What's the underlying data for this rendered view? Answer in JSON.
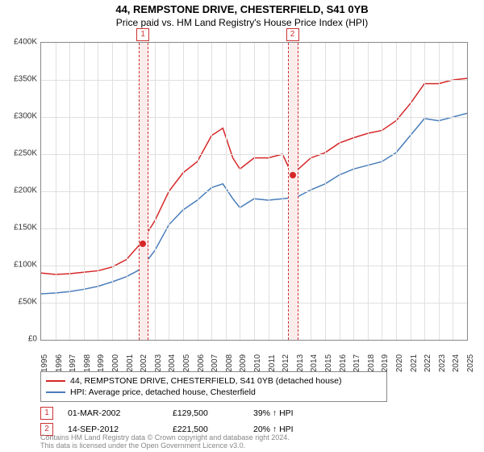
{
  "title": "44, REMPSTONE DRIVE, CHESTERFIELD, S41 0YB",
  "subtitle": "Price paid vs. HM Land Registry's House Price Index (HPI)",
  "chart": {
    "type": "line",
    "ylim": [
      0,
      400000
    ],
    "xlim": [
      1995,
      2025
    ],
    "y_ticks": [
      0,
      50000,
      100000,
      150000,
      200000,
      250000,
      300000,
      350000,
      400000
    ],
    "y_tick_labels": [
      "£0",
      "£50K",
      "£100K",
      "£150K",
      "£200K",
      "£250K",
      "£300K",
      "£350K",
      "£400K"
    ],
    "x_ticks": [
      1995,
      1996,
      1997,
      1998,
      1999,
      2000,
      2001,
      2002,
      2003,
      2004,
      2005,
      2006,
      2007,
      2008,
      2009,
      2010,
      2011,
      2012,
      2013,
      2014,
      2015,
      2016,
      2017,
      2018,
      2019,
      2020,
      2021,
      2022,
      2023,
      2024,
      2025
    ],
    "grid_color": "#e0e0e0",
    "background_color": "#ffffff",
    "line_width": 1.5,
    "series": [
      {
        "name": "property",
        "label": "44, REMPSTONE DRIVE, CHESTERFIELD, S41 0YB (detached house)",
        "color": "#d62728",
        "data": [
          [
            1995,
            90000
          ],
          [
            1996,
            88000
          ],
          [
            1997,
            89000
          ],
          [
            1998,
            91000
          ],
          [
            1999,
            93000
          ],
          [
            2000,
            98000
          ],
          [
            2001,
            108000
          ],
          [
            2002,
            129500
          ],
          [
            2003,
            160000
          ],
          [
            2004,
            200000
          ],
          [
            2005,
            225000
          ],
          [
            2006,
            240000
          ],
          [
            2007,
            275000
          ],
          [
            2007.8,
            285000
          ],
          [
            2008.5,
            245000
          ],
          [
            2009,
            230000
          ],
          [
            2010,
            245000
          ],
          [
            2011,
            245000
          ],
          [
            2012,
            250000
          ],
          [
            2012.7,
            221500
          ],
          [
            2013,
            228000
          ],
          [
            2014,
            245000
          ],
          [
            2015,
            252000
          ],
          [
            2016,
            265000
          ],
          [
            2017,
            272000
          ],
          [
            2018,
            278000
          ],
          [
            2019,
            282000
          ],
          [
            2020,
            295000
          ],
          [
            2021,
            318000
          ],
          [
            2022,
            345000
          ],
          [
            2023,
            345000
          ],
          [
            2024,
            350000
          ],
          [
            2025,
            352000
          ]
        ]
      },
      {
        "name": "hpi",
        "label": "HPI: Average price, detached house, Chesterfield",
        "color": "#4a7ebb",
        "data": [
          [
            1995,
            62000
          ],
          [
            1996,
            63000
          ],
          [
            1997,
            65000
          ],
          [
            1998,
            68000
          ],
          [
            1999,
            72000
          ],
          [
            2000,
            78000
          ],
          [
            2001,
            85000
          ],
          [
            2002,
            95000
          ],
          [
            2003,
            120000
          ],
          [
            2004,
            155000
          ],
          [
            2005,
            175000
          ],
          [
            2006,
            188000
          ],
          [
            2007,
            205000
          ],
          [
            2007.8,
            210000
          ],
          [
            2008.5,
            190000
          ],
          [
            2009,
            178000
          ],
          [
            2010,
            190000
          ],
          [
            2011,
            188000
          ],
          [
            2012,
            190000
          ],
          [
            2013,
            192000
          ],
          [
            2014,
            202000
          ],
          [
            2015,
            210000
          ],
          [
            2016,
            222000
          ],
          [
            2017,
            230000
          ],
          [
            2018,
            235000
          ],
          [
            2019,
            240000
          ],
          [
            2020,
            252000
          ],
          [
            2021,
            275000
          ],
          [
            2022,
            298000
          ],
          [
            2023,
            295000
          ],
          [
            2024,
            300000
          ],
          [
            2025,
            305000
          ]
        ]
      }
    ],
    "markers": [
      {
        "num": "1",
        "x": 2002.17,
        "band_width_years": 0.6
      },
      {
        "num": "2",
        "x": 2012.7,
        "band_width_years": 0.6
      }
    ],
    "point_dot_color": "#d62728"
  },
  "legend": {
    "border_color": "#888888",
    "items": [
      {
        "color": "#d62728",
        "label": "44, REMPSTONE DRIVE, CHESTERFIELD, S41 0YB (detached house)"
      },
      {
        "color": "#4a7ebb",
        "label": "HPI: Average price, detached house, Chesterfield"
      }
    ]
  },
  "transactions": [
    {
      "num": "1",
      "date": "01-MAR-2002",
      "price": "£129,500",
      "pct": "39% ↑ HPI"
    },
    {
      "num": "2",
      "date": "14-SEP-2012",
      "price": "£221,500",
      "pct": "20% ↑ HPI"
    }
  ],
  "footer_line1": "Contains HM Land Registry data © Crown copyright and database right 2024.",
  "footer_line2": "This data is licensed under the Open Government Licence v3.0."
}
